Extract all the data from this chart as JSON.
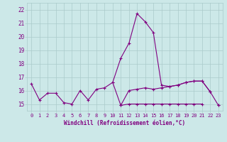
{
  "xlabel": "Windchill (Refroidissement éolien,°C)",
  "x": [
    0,
    1,
    2,
    3,
    4,
    5,
    6,
    7,
    8,
    9,
    10,
    11,
    12,
    13,
    14,
    15,
    16,
    17,
    18,
    19,
    20,
    21,
    22,
    23
  ],
  "line_spike": [
    null,
    null,
    null,
    null,
    null,
    null,
    null,
    null,
    null,
    null,
    16.6,
    18.4,
    19.5,
    21.7,
    21.1,
    20.3,
    16.4,
    16.3,
    16.4,
    16.6,
    16.7,
    16.7,
    15.9,
    null
  ],
  "line_mid": [
    16.5,
    15.3,
    15.8,
    15.8,
    15.1,
    15.0,
    16.0,
    15.3,
    16.1,
    16.2,
    16.6,
    14.9,
    16.0,
    16.1,
    16.2,
    16.1,
    16.2,
    16.3,
    16.4,
    16.6,
    16.7,
    16.7,
    15.9,
    14.9
  ],
  "line_flat": [
    null,
    null,
    null,
    null,
    null,
    null,
    null,
    null,
    null,
    null,
    null,
    14.9,
    15.0,
    15.0,
    15.0,
    15.0,
    15.0,
    15.0,
    15.0,
    15.0,
    15.0,
    15.0,
    null,
    14.9
  ],
  "ylim": [
    14.5,
    22.5
  ],
  "xlim": [
    -0.5,
    23.5
  ],
  "yticks": [
    15,
    16,
    17,
    18,
    19,
    20,
    21,
    22
  ],
  "xticks": [
    0,
    1,
    2,
    3,
    4,
    5,
    6,
    7,
    8,
    9,
    10,
    11,
    12,
    13,
    14,
    15,
    16,
    17,
    18,
    19,
    20,
    21,
    22,
    23
  ],
  "line_color": "#800080",
  "bg_color": "#cce8e8",
  "grid_color": "#aacaca",
  "marker": "+"
}
